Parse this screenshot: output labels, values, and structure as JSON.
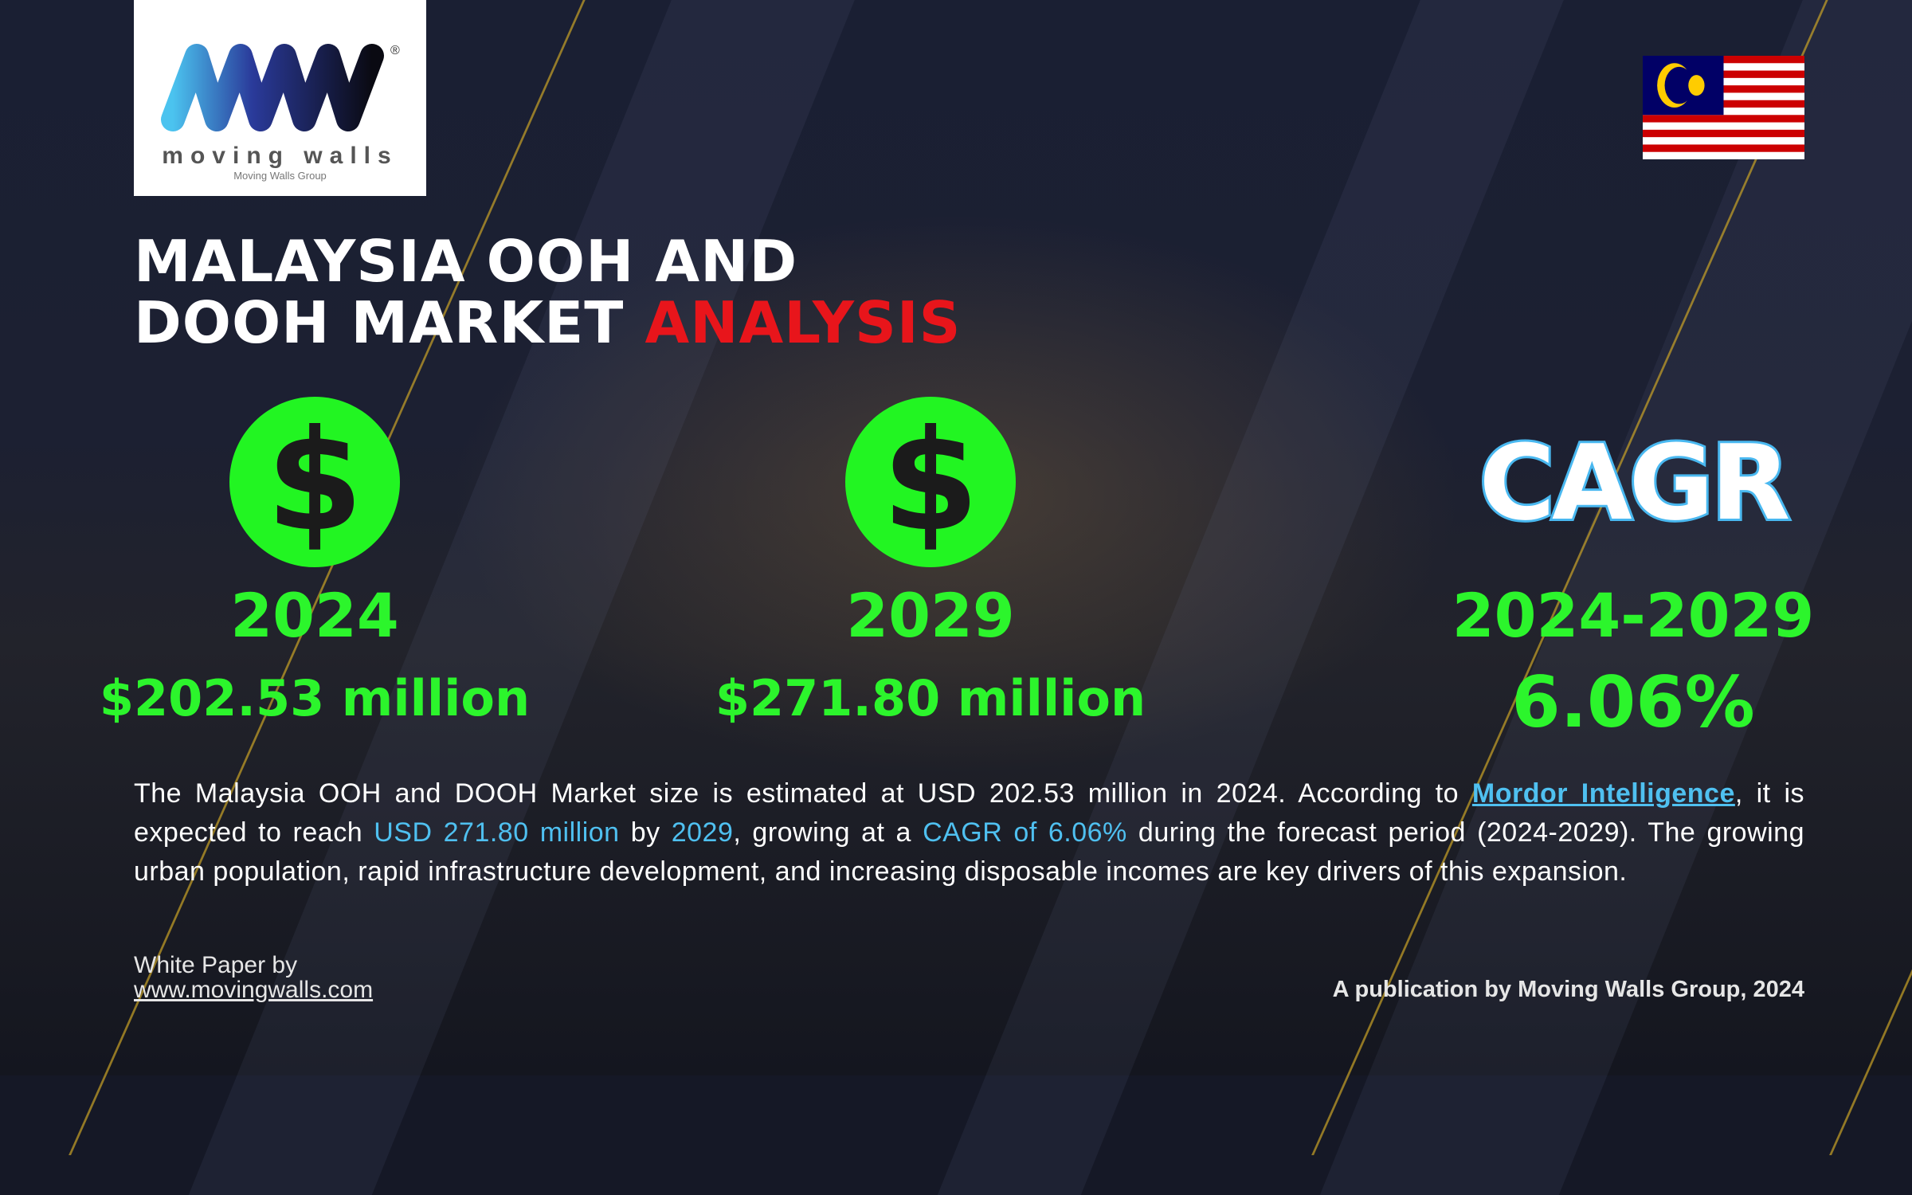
{
  "logo": {
    "wordmark": "moving walls",
    "group": "Moving Walls Group",
    "registered": "®"
  },
  "flag": {
    "country": "Malaysia"
  },
  "title": {
    "line1": "MALAYSIA OOH AND",
    "line2_white": "DOOH MARKET",
    "line2_red": "ANALYSIS"
  },
  "colors": {
    "accent_green": "#2cf52c",
    "accent_red": "#e8151b",
    "link_blue": "#4fc0f0"
  },
  "stats": [
    {
      "icon": "dollar-icon",
      "symbol": "$",
      "year": "2024",
      "value": "$202.53 million"
    },
    {
      "icon": "dollar-icon",
      "symbol": "$",
      "year": "2029",
      "value": "$271.80 million"
    },
    {
      "label": "CAGR",
      "year": "2024-2029",
      "value": "6.06%"
    }
  ],
  "paragraph": {
    "p1": "The Malaysia OOH and DOOH Market size is estimated at USD 202.53 million in 2024. According to ",
    "link": "Mordor Intelligence",
    "p2": ", it is expected to reach ",
    "h1": "USD 271.80 million",
    "p3": " by ",
    "h2": "2029",
    "p4": ", growing at a ",
    "h3": "CAGR of 6.06%",
    "p5": " during the forecast period (2024-2029). The growing urban population, rapid infrastructure development, and increasing disposable incomes are key drivers of this expansion."
  },
  "footer": {
    "white_paper": "White Paper by",
    "url": "www.movingwalls.com",
    "publication": "A publication by Moving Walls Group, 2024"
  }
}
